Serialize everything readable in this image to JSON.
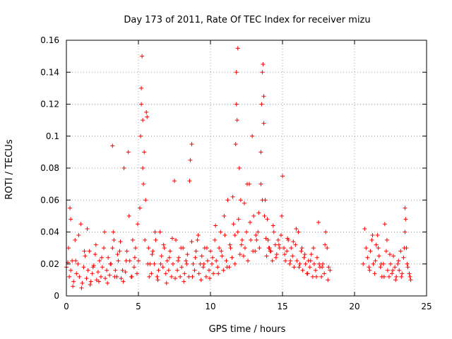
{
  "chart_data": {
    "type": "scatter",
    "title": "Day 173 of 2011, Rate Of TEC Index for receiver mizu",
    "xlabel": "GPS time / hours",
    "ylabel": "ROTI / TECUs",
    "xlim": [
      0,
      25
    ],
    "ylim": [
      0,
      0.16
    ],
    "xticks": [
      0,
      5,
      10,
      15,
      20,
      25
    ],
    "yticks": [
      0,
      0.02,
      0.04,
      0.06,
      0.08,
      0.1,
      0.12,
      0.14,
      0.16
    ],
    "xtick_labels": [
      "0",
      "5",
      "10",
      "15",
      "20",
      "25"
    ],
    "ytick_labels": [
      "0",
      "0.02",
      "0.04",
      "0.06",
      "0.08",
      "0.1",
      "0.12",
      "0.14",
      "0.16"
    ],
    "grid": true,
    "marker": "+",
    "marker_color": "#ff0000",
    "series": [
      {
        "x": [
          0.0,
          0.1,
          0.2,
          0.25,
          0.3,
          0.4,
          0.5,
          0.6,
          0.7,
          0.8,
          0.9,
          1.0,
          1.1,
          1.2,
          1.3,
          1.4,
          1.5,
          1.6,
          1.7,
          1.8,
          1.9,
          2.0,
          2.1,
          2.2,
          2.3,
          2.4,
          2.5,
          2.6,
          2.7,
          2.8,
          2.9,
          3.0,
          3.1,
          3.2,
          3.25,
          3.3,
          3.4,
          3.5,
          3.6,
          3.7,
          3.8,
          3.9,
          4.0,
          4.1,
          4.2,
          4.3,
          4.4,
          4.5,
          4.6,
          4.7,
          4.8,
          4.9,
          5.0,
          5.1,
          5.2,
          5.25,
          5.3,
          5.4,
          5.5,
          5.6,
          5.7,
          5.8,
          5.9,
          6.0,
          6.1,
          6.2,
          6.3,
          6.4,
          6.5,
          6.6,
          6.7,
          6.8,
          6.9,
          7.0,
          7.1,
          7.2,
          7.3,
          7.4,
          7.5,
          7.6,
          7.7,
          7.8,
          7.9,
          8.0,
          8.1,
          8.2,
          8.3,
          8.4,
          8.5,
          8.6,
          8.7,
          8.8,
          8.9,
          9.0,
          9.1,
          9.2,
          9.3,
          9.4,
          9.5,
          9.6,
          9.7,
          9.8,
          9.9,
          10.0,
          10.1,
          10.2,
          10.3,
          10.4,
          10.5,
          10.6,
          10.7,
          10.8,
          10.9,
          11.0,
          11.1,
          11.2,
          11.3,
          11.4,
          11.5,
          11.6,
          11.7,
          11.8,
          11.9,
          12.0,
          12.1,
          12.2,
          12.3,
          12.4,
          12.5,
          12.6,
          12.7,
          12.8,
          12.9,
          13.0,
          13.1,
          13.2,
          13.3,
          13.4,
          13.5,
          13.6,
          13.7,
          13.8,
          13.9,
          14.0,
          14.1,
          14.2,
          14.3,
          14.4,
          14.5,
          14.6,
          14.7,
          14.8,
          14.9,
          15.0,
          15.1,
          15.2,
          15.3,
          15.4,
          15.5,
          15.6,
          15.7,
          15.8,
          15.9,
          16.0,
          16.1,
          16.2,
          16.3,
          16.4,
          16.5,
          16.6,
          16.7,
          16.8,
          16.9,
          17.0,
          17.1,
          17.2,
          17.3,
          17.4,
          17.5,
          17.6,
          17.7,
          17.8,
          17.9,
          18.0,
          18.1,
          18.2,
          18.3,
          20.6,
          20.7,
          20.8,
          20.9,
          21.0,
          21.1,
          21.2,
          21.3,
          21.4,
          21.5,
          21.6,
          21.7,
          21.8,
          21.9,
          22.0,
          22.1,
          22.2,
          22.3,
          22.4,
          22.5,
          22.6,
          22.7,
          22.8,
          22.9,
          23.0,
          23.1,
          23.2,
          23.3,
          23.4,
          23.5,
          23.6,
          23.7,
          23.8,
          23.9,
          0.15,
          0.3,
          0.45,
          0.65,
          0.85,
          1.05,
          1.25,
          1.45,
          1.65,
          1.85,
          2.05,
          2.25,
          2.45,
          2.65,
          2.85,
          3.05,
          3.2,
          3.35,
          3.55,
          3.75,
          3.95,
          4.15,
          4.35,
          4.55,
          4.75,
          4.95,
          5.15,
          5.2,
          5.3,
          5.35,
          5.45,
          5.55,
          5.65,
          5.75,
          5.95,
          6.15,
          6.35,
          6.55,
          6.75,
          6.95,
          7.15,
          7.35,
          7.55,
          7.75,
          7.95,
          8.15,
          8.35,
          8.55,
          8.7,
          8.75,
          8.95,
          9.15,
          9.35,
          9.55,
          9.75,
          9.95,
          10.15,
          10.35,
          10.55,
          10.75,
          10.95,
          11.15,
          11.35,
          11.55,
          11.7,
          11.75,
          11.8,
          11.85,
          11.9,
          11.95,
          12.05,
          12.15,
          12.35,
          12.55,
          12.75,
          12.95,
          13.15,
          13.35,
          13.5,
          13.55,
          13.6,
          13.65,
          13.7,
          13.75,
          13.85,
          13.95,
          14.05,
          14.15,
          14.35,
          14.55,
          14.75,
          14.95,
          15.15,
          15.35,
          15.55,
          15.75,
          15.95,
          16.15,
          16.35,
          16.55,
          16.75,
          16.95,
          17.15,
          17.35,
          17.55,
          17.75,
          17.95,
          18.15,
          21.05,
          21.25,
          21.45,
          21.65,
          21.85,
          22.05,
          22.25,
          22.45,
          22.65,
          22.85,
          23.05,
          23.25,
          23.45,
          23.5,
          23.55,
          23.65,
          23.85
        ],
        "y": [
          0.018,
          0.021,
          0.012,
          0.055,
          0.016,
          0.022,
          0.009,
          0.035,
          0.014,
          0.02,
          0.012,
          0.045,
          0.008,
          0.018,
          0.025,
          0.011,
          0.016,
          0.028,
          0.009,
          0.014,
          0.019,
          0.026,
          0.01,
          0.015,
          0.022,
          0.012,
          0.018,
          0.03,
          0.011,
          0.016,
          0.024,
          0.013,
          0.02,
          0.094,
          0.04,
          0.035,
          0.016,
          0.012,
          0.022,
          0.028,
          0.011,
          0.016,
          0.08,
          0.015,
          0.028,
          0.09,
          0.022,
          0.012,
          0.035,
          0.018,
          0.03,
          0.014,
          0.022,
          0.055,
          0.13,
          0.15,
          0.11,
          0.09,
          0.06,
          0.112,
          0.03,
          0.02,
          0.014,
          0.028,
          0.02,
          0.035,
          0.012,
          0.016,
          0.04,
          0.025,
          0.018,
          0.03,
          0.014,
          0.022,
          0.016,
          0.028,
          0.012,
          0.02,
          0.072,
          0.035,
          0.016,
          0.024,
          0.012,
          0.018,
          0.03,
          0.014,
          0.022,
          0.026,
          0.012,
          0.085,
          0.095,
          0.02,
          0.016,
          0.028,
          0.035,
          0.014,
          0.02,
          0.025,
          0.018,
          0.03,
          0.012,
          0.022,
          0.016,
          0.028,
          0.02,
          0.014,
          0.035,
          0.022,
          0.018,
          0.03,
          0.04,
          0.025,
          0.016,
          0.038,
          0.022,
          0.06,
          0.018,
          0.03,
          0.024,
          0.045,
          0.02,
          0.12,
          0.155,
          0.08,
          0.06,
          0.035,
          0.025,
          0.03,
          0.04,
          0.022,
          0.07,
          0.035,
          0.1,
          0.05,
          0.028,
          0.035,
          0.04,
          0.03,
          0.09,
          0.14,
          0.125,
          0.06,
          0.025,
          0.035,
          0.03,
          0.028,
          0.022,
          0.04,
          0.032,
          0.026,
          0.035,
          0.03,
          0.038,
          0.075,
          0.03,
          0.022,
          0.028,
          0.035,
          0.02,
          0.03,
          0.025,
          0.018,
          0.032,
          0.022,
          0.04,
          0.02,
          0.028,
          0.016,
          0.024,
          0.02,
          0.014,
          0.022,
          0.018,
          0.026,
          0.012,
          0.02,
          0.016,
          0.024,
          0.046,
          0.018,
          0.012,
          0.02,
          0.014,
          0.04,
          0.03,
          0.018,
          0.016,
          0.02,
          0.042,
          0.03,
          0.024,
          0.018,
          0.028,
          0.035,
          0.02,
          0.014,
          0.032,
          0.038,
          0.025,
          0.018,
          0.012,
          0.02,
          0.045,
          0.028,
          0.016,
          0.012,
          0.02,
          0.014,
          0.025,
          0.018,
          0.012,
          0.02,
          0.016,
          0.028,
          0.014,
          0.024,
          0.055,
          0.03,
          0.018,
          0.014,
          0.01,
          0.03,
          0.048,
          0.006,
          0.022,
          0.038,
          0.005,
          0.028,
          0.042,
          0.007,
          0.018,
          0.032,
          0.009,
          0.024,
          0.04,
          0.008,
          0.02,
          0.03,
          0.012,
          0.026,
          0.034,
          0.009,
          0.022,
          0.05,
          0.012,
          0.024,
          0.045,
          0.1,
          0.12,
          0.08,
          0.07,
          0.035,
          0.115,
          0.02,
          0.012,
          0.026,
          0.04,
          0.01,
          0.02,
          0.032,
          0.008,
          0.024,
          0.036,
          0.011,
          0.022,
          0.03,
          0.009,
          0.02,
          0.072,
          0.034,
          0.012,
          0.024,
          0.038,
          0.01,
          0.02,
          0.03,
          0.011,
          0.024,
          0.044,
          0.014,
          0.028,
          0.05,
          0.018,
          0.032,
          0.062,
          0.038,
          0.095,
          0.14,
          0.11,
          0.04,
          0.048,
          0.026,
          0.032,
          0.058,
          0.07,
          0.046,
          0.028,
          0.038,
          0.052,
          0.07,
          0.12,
          0.06,
          0.145,
          0.108,
          0.05,
          0.036,
          0.048,
          0.03,
          0.028,
          0.044,
          0.024,
          0.032,
          0.05,
          0.026,
          0.036,
          0.022,
          0.034,
          0.042,
          0.018,
          0.03,
          0.026,
          0.014,
          0.022,
          0.03,
          0.012,
          0.02,
          0.018,
          0.032,
          0.01,
          0.016,
          0.038,
          0.022,
          0.03,
          0.02,
          0.012,
          0.035,
          0.026,
          0.016,
          0.01,
          0.022,
          0.012,
          0.03,
          0.04,
          0.048,
          0.02,
          0.012
        ]
      }
    ]
  }
}
